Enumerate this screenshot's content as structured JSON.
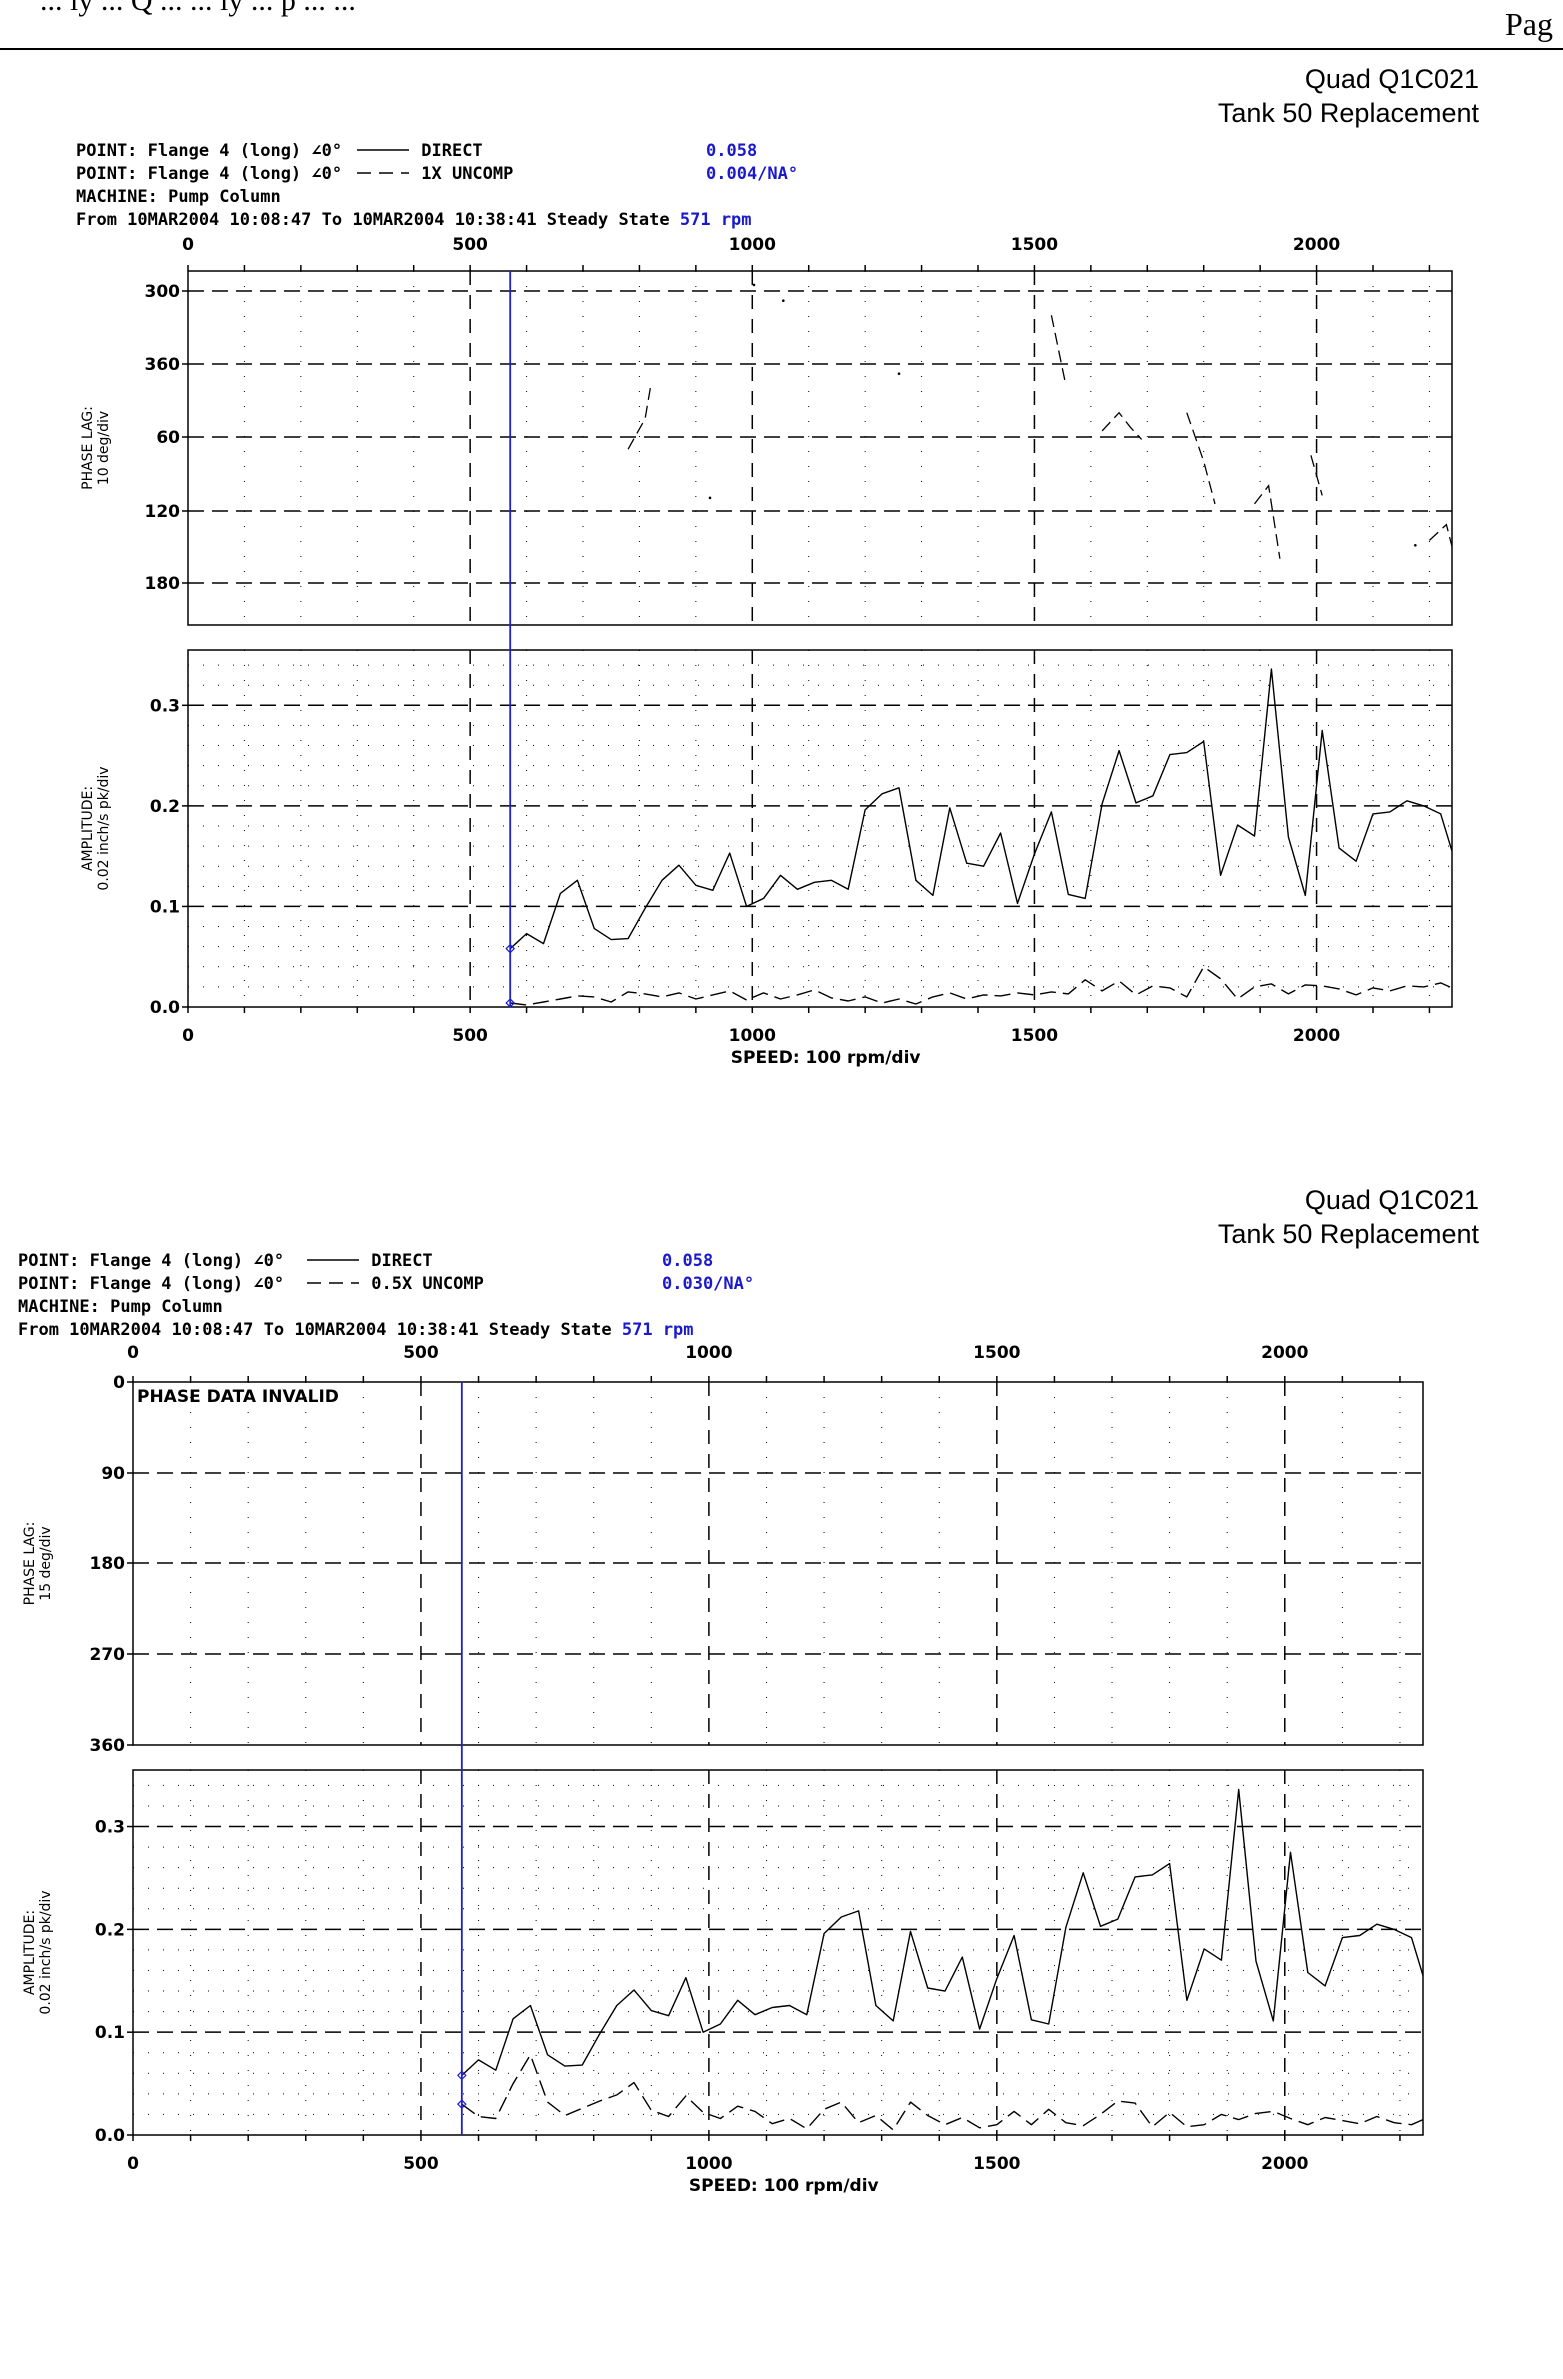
{
  "header": {
    "fragment": "... ly ... Q ... ... ly ... p ... ...",
    "page_label": "Pag"
  },
  "chart_data": [
    {
      "type": "line",
      "title_lines": [
        "Quad Q1C021",
        "Tank 50 Replacement"
      ],
      "info": {
        "point1": "POINT: Flange 4 (long)",
        "point1_angle": "∠0°",
        "point1_legend": "DIRECT",
        "point1_value": "0.058",
        "point2": "POINT: Flange 4 (long)",
        "point2_angle": "∠0°",
        "point2_legend": "1X UNCOMP",
        "point2_value": "0.004/NA°",
        "machine": "MACHINE: Pump Column",
        "range": "From 10MAR2004 10:08:47 To 10MAR2004 10:38:41 Steady State",
        "rpm": "571 rpm"
      },
      "cursor_rpm": 571,
      "x_ticks": [
        "0",
        "500",
        "1000",
        "1500",
        "2000"
      ],
      "xlim": [
        0,
        2240
      ],
      "xlabel": "SPEED: 100 rpm/div",
      "phase": {
        "ylabel": [
          "PHASE LAG:",
          "10 deg/div"
        ],
        "y_ticks": [
          "300",
          "360",
          "60",
          "120",
          "180"
        ],
        "note": "",
        "segments": [
          [
            [
              780,
              70
            ],
            [
              810,
              45
            ],
            [
              820,
              18
            ]
          ],
          [
            [
              1530,
              -40
            ],
            [
              1555,
              16
            ]
          ],
          [
            [
              1620,
              55
            ],
            [
              1650,
              40
            ],
            [
              1670,
              52
            ],
            [
              1690,
              62
            ]
          ],
          [
            [
              1770,
              40
            ],
            [
              1800,
              80
            ],
            [
              1820,
              115
            ]
          ],
          [
            [
              1890,
              115
            ],
            [
              1915,
              100
            ],
            [
              1935,
              160
            ]
          ],
          [
            [
              1990,
              75
            ],
            [
              2010,
              108
            ]
          ],
          [
            [
              2200,
              145
            ],
            [
              2230,
              132
            ],
            [
              2240,
              150
            ]
          ]
        ],
        "dots": [
          [
            1003,
            -65
          ],
          [
            1055,
            -52
          ],
          [
            1260,
            8
          ],
          [
            925,
            110
          ],
          [
            2175,
            149
          ]
        ]
      },
      "amplitude": {
        "ylabel": [
          "AMPLITUDE:",
          "0.02 inch/s pk/div"
        ],
        "y_ticks": [
          "0.0",
          "0.1",
          "0.2",
          "0.3"
        ],
        "series": [
          {
            "name": "DIRECT",
            "style": "solid",
            "x": [
              571,
              600,
              630,
              660,
              690,
              720,
              750,
              780,
              810,
              840,
              870,
              900,
              930,
              960,
              990,
              1020,
              1050,
              1080,
              1110,
              1140,
              1170,
              1200,
              1230,
              1260,
              1290,
              1320,
              1350,
              1380,
              1410,
              1440,
              1470,
              1500,
              1530,
              1560,
              1590,
              1620,
              1650,
              1680,
              1710,
              1740,
              1770,
              1800,
              1830,
              1860,
              1890,
              1920,
              1950,
              1980,
              2010,
              2040,
              2070,
              2100,
              2130,
              2160,
              2190,
              2220,
              2240
            ],
            "values": [
              0.058,
              0.073,
              0.063,
              0.113,
              0.126,
              0.078,
              0.067,
              0.068,
              0.098,
              0.126,
              0.141,
              0.121,
              0.116,
              0.153,
              0.1,
              0.108,
              0.131,
              0.117,
              0.124,
              0.126,
              0.117,
              0.196,
              0.212,
              0.218,
              0.126,
              0.111,
              0.198,
              0.143,
              0.14,
              0.173,
              0.103,
              0.152,
              0.194,
              0.112,
              0.108,
              0.202,
              0.255,
              0.203,
              0.21,
              0.251,
              0.253,
              0.264,
              0.131,
              0.181,
              0.17,
              0.336,
              0.169,
              0.111,
              0.275,
              0.158,
              0.145,
              0.192,
              0.194,
              0.205,
              0.2,
              0.192,
              0.155
            ]
          },
          {
            "name": "1X UNCOMP",
            "style": "dashed",
            "x": [
              571,
              600,
              630,
              660,
              690,
              720,
              750,
              780,
              810,
              840,
              870,
              900,
              930,
              960,
              990,
              1020,
              1050,
              1080,
              1110,
              1140,
              1170,
              1200,
              1230,
              1260,
              1290,
              1320,
              1350,
              1380,
              1410,
              1440,
              1470,
              1500,
              1530,
              1560,
              1590,
              1620,
              1650,
              1680,
              1710,
              1740,
              1770,
              1800,
              1830,
              1860,
              1890,
              1920,
              1950,
              1980,
              2010,
              2040,
              2070,
              2100,
              2130,
              2160,
              2190,
              2220,
              2240
            ],
            "values": [
              0.004,
              0.002,
              0.005,
              0.008,
              0.011,
              0.01,
              0.005,
              0.015,
              0.013,
              0.01,
              0.014,
              0.008,
              0.012,
              0.016,
              0.007,
              0.014,
              0.008,
              0.012,
              0.017,
              0.009,
              0.006,
              0.01,
              0.004,
              0.008,
              0.003,
              0.01,
              0.014,
              0.008,
              0.012,
              0.011,
              0.014,
              0.012,
              0.015,
              0.013,
              0.027,
              0.016,
              0.026,
              0.012,
              0.021,
              0.019,
              0.01,
              0.04,
              0.028,
              0.008,
              0.02,
              0.023,
              0.013,
              0.022,
              0.021,
              0.018,
              0.012,
              0.019,
              0.016,
              0.021,
              0.02,
              0.024,
              0.019
            ]
          }
        ]
      }
    },
    {
      "type": "line",
      "title_lines": [
        "Quad Q1C021",
        "Tank 50 Replacement"
      ],
      "info": {
        "point1": "POINT: Flange 4 (long)",
        "point1_angle": "∠0°",
        "point1_legend": "DIRECT",
        "point1_value": "0.058",
        "point2": "POINT: Flange 4 (long)",
        "point2_angle": "∠0°",
        "point2_legend": "0.5X UNCOMP",
        "point2_value": "0.030/NA°",
        "machine": "MACHINE: Pump Column",
        "range": "From 10MAR2004 10:08:47 To 10MAR2004 10:38:41 Steady State",
        "rpm": "571 rpm"
      },
      "cursor_rpm": 571,
      "x_ticks": [
        "0",
        "500",
        "1000",
        "1500",
        "2000"
      ],
      "xlim": [
        0,
        2240
      ],
      "xlabel": "SPEED: 100 rpm/div",
      "phase": {
        "ylabel": [
          "PHASE LAG:",
          "15 deg/div"
        ],
        "y_ticks": [
          "0",
          "90",
          "180",
          "270",
          "360"
        ],
        "note": "PHASE DATA INVALID",
        "segments": [],
        "dots": []
      },
      "amplitude": {
        "ylabel": [
          "AMPLITUDE:",
          "0.02 inch/s pk/div"
        ],
        "y_ticks": [
          "0.0",
          "0.1",
          "0.2",
          "0.3"
        ],
        "series": [
          {
            "name": "DIRECT",
            "style": "solid",
            "x": [
              571,
              600,
              630,
              660,
              690,
              720,
              750,
              780,
              810,
              840,
              870,
              900,
              930,
              960,
              990,
              1020,
              1050,
              1080,
              1110,
              1140,
              1170,
              1200,
              1230,
              1260,
              1290,
              1320,
              1350,
              1380,
              1410,
              1440,
              1470,
              1500,
              1530,
              1560,
              1590,
              1620,
              1650,
              1680,
              1710,
              1740,
              1770,
              1800,
              1830,
              1860,
              1890,
              1920,
              1950,
              1980,
              2010,
              2040,
              2070,
              2100,
              2130,
              2160,
              2190,
              2220,
              2240
            ],
            "values": [
              0.058,
              0.073,
              0.063,
              0.113,
              0.126,
              0.078,
              0.067,
              0.068,
              0.098,
              0.126,
              0.141,
              0.121,
              0.116,
              0.153,
              0.1,
              0.108,
              0.131,
              0.117,
              0.124,
              0.126,
              0.117,
              0.196,
              0.212,
              0.218,
              0.126,
              0.111,
              0.198,
              0.143,
              0.14,
              0.173,
              0.103,
              0.152,
              0.194,
              0.112,
              0.108,
              0.202,
              0.255,
              0.203,
              0.21,
              0.251,
              0.253,
              0.264,
              0.131,
              0.181,
              0.17,
              0.336,
              0.169,
              0.111,
              0.275,
              0.158,
              0.145,
              0.192,
              0.194,
              0.205,
              0.2,
              0.192,
              0.155
            ]
          },
          {
            "name": "0.5X UNCOMP",
            "style": "dashed",
            "x": [
              571,
              600,
              630,
              660,
              690,
              720,
              750,
              780,
              810,
              840,
              870,
              900,
              930,
              960,
              990,
              1020,
              1050,
              1080,
              1110,
              1140,
              1170,
              1200,
              1230,
              1260,
              1290,
              1320,
              1350,
              1380,
              1410,
              1440,
              1470,
              1500,
              1530,
              1560,
              1590,
              1620,
              1650,
              1680,
              1710,
              1740,
              1770,
              1800,
              1830,
              1860,
              1890,
              1920,
              1950,
              1980,
              2010,
              2040,
              2070,
              2100,
              2130,
              2160,
              2190,
              2220,
              2240
            ],
            "values": [
              0.03,
              0.018,
              0.016,
              0.05,
              0.078,
              0.032,
              0.019,
              0.026,
              0.033,
              0.039,
              0.051,
              0.024,
              0.018,
              0.038,
              0.022,
              0.016,
              0.028,
              0.023,
              0.011,
              0.016,
              0.006,
              0.025,
              0.032,
              0.012,
              0.019,
              0.005,
              0.032,
              0.019,
              0.01,
              0.017,
              0.007,
              0.01,
              0.023,
              0.01,
              0.025,
              0.012,
              0.009,
              0.02,
              0.033,
              0.031,
              0.008,
              0.022,
              0.008,
              0.01,
              0.02,
              0.015,
              0.021,
              0.023,
              0.016,
              0.01,
              0.017,
              0.014,
              0.011,
              0.018,
              0.012,
              0.01,
              0.015
            ]
          }
        ]
      }
    }
  ]
}
